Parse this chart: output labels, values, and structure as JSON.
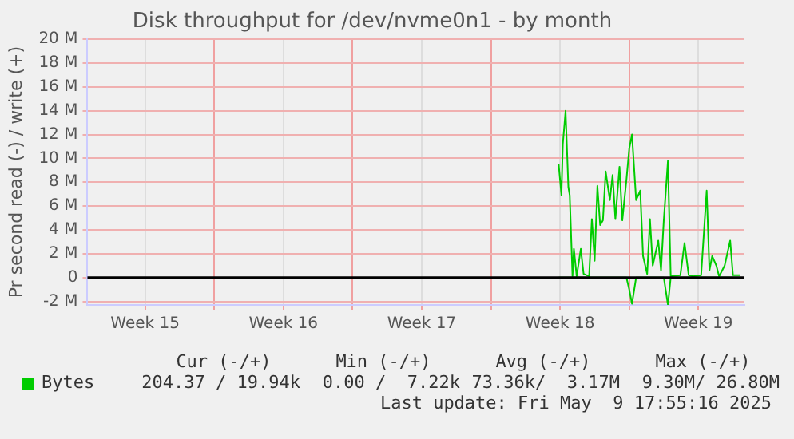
{
  "chart_data": {
    "type": "line",
    "title": "Disk throughput for /dev/nvme0n1 - by month",
    "ylabel": "Pr second read (-) / write (+)",
    "xlim": [
      "2025-04-07T14:00",
      "2025-05-10T20:00"
    ],
    "xticks": [
      {
        "value": "2025-04-10T12:00",
        "label": "Week 15"
      },
      {
        "value": "2025-04-14",
        "label": null
      },
      {
        "value": "2025-04-17T12:00",
        "label": "Week 16"
      },
      {
        "value": "2025-04-21",
        "label": null
      },
      {
        "value": "2025-04-24T12:00",
        "label": "Week 17"
      },
      {
        "value": "2025-04-28",
        "label": null
      },
      {
        "value": "2025-05-01T12:00",
        "label": "Week 18"
      },
      {
        "value": "2025-05-05",
        "label": null
      },
      {
        "value": "2025-05-08T12:00",
        "label": "Week 19"
      }
    ],
    "ylim": [
      -2.3,
      20
    ],
    "yticks": [
      {
        "value": -2,
        "label": "-2 M"
      },
      0,
      {
        "value": 2,
        "label": "2 M"
      },
      {
        "value": 4,
        "label": "4 M"
      },
      {
        "value": 6,
        "label": "6 M"
      },
      {
        "value": 8,
        "label": "8 M"
      },
      {
        "value": 10,
        "label": "10 M"
      },
      {
        "value": 12,
        "label": "12 M"
      },
      {
        "value": 14,
        "label": "14 M"
      },
      {
        "value": 16,
        "label": "16 M"
      },
      {
        "value": 18,
        "label": "18 M"
      },
      {
        "value": 20,
        "label": "20 M"
      }
    ],
    "grid": true,
    "legend": "bottom left",
    "marker": "none",
    "line_style": "solid",
    "series": [
      {
        "name": "Bytes",
        "color": "#00cc00",
        "x": [
          "2025-05-01T10:19",
          "2025-05-01T13:41",
          "2025-05-01T15:22",
          "2025-05-01T18:43",
          "2025-05-01T22:05",
          "2025-05-01T23:46",
          "2025-05-02T03:07",
          "2025-05-02T04:48",
          "2025-05-02T08:10",
          "2025-05-02T13:12",
          "2025-05-02T16:34",
          "2025-05-02T23:17",
          "2025-05-03T02:38",
          "2025-05-03T06:00",
          "2025-05-03T09:22",
          "2025-05-03T12:43",
          "2025-05-03T16:05",
          "2025-05-03T19:26",
          "2025-05-04T00:29",
          "2025-05-04T03:50",
          "2025-05-04T07:12",
          "2025-05-04T12:14",
          "2025-05-04T15:36",
          "2025-05-04T20:38",
          "2025-05-05T00:00",
          "2025-05-05T03:22",
          "2025-05-05T08:24",
          "2025-05-05T13:26",
          "2025-05-05T16:48",
          "2025-05-05T21:50",
          "2025-05-06T01:12",
          "2025-05-06T04:34",
          "2025-05-06T11:17",
          "2025-05-06T14:38",
          "2025-05-06T18:00",
          "2025-05-06T23:02",
          "2025-05-07T02:24",
          "2025-05-07T14:10",
          "2025-05-07T19:12",
          "2025-05-08T00:14",
          "2025-05-08T05:17",
          "2025-05-08T15:22",
          "2025-05-08T22:05",
          "2025-05-09T01:26",
          "2025-05-09T04:48",
          "2025-05-09T09:50",
          "2025-05-09T13:12",
          "2025-05-09T19:55",
          "2025-05-10T02:38",
          "2025-05-10T06:00",
          "2025-05-10T14:24"
        ],
        "values": [
          9.5,
          6.9,
          11.2,
          14.0,
          7.6,
          6.9,
          0.1,
          2.4,
          0.1,
          2.4,
          0.3,
          0.1,
          4.9,
          1.4,
          7.7,
          4.4,
          4.8,
          8.9,
          6.5,
          8.6,
          4.9,
          9.3,
          4.8,
          8.2,
          10.8,
          12.0,
          6.5,
          7.3,
          1.8,
          0.3,
          4.9,
          1.0,
          3.1,
          0.6,
          4.8,
          9.8,
          0.1,
          0.2,
          2.9,
          0.2,
          0.1,
          0.2,
          7.3,
          0.6,
          1.8,
          1.0,
          0.1,
          1.0,
          3.1,
          0.2,
          0.2
        ]
      },
      {
        "color": "#00cc00",
        "x": [
          "2025-05-01T10:19",
          "2025-05-04T20:38",
          "2025-05-05T00:00",
          "2025-05-05T03:22",
          "2025-05-05T08:24",
          "2025-05-06T18:00",
          "2025-05-06T23:02",
          "2025-05-07T02:24",
          "2025-05-10T14:24"
        ],
        "values": [
          0,
          0,
          -1.0,
          -2.2,
          0,
          0,
          -2.3,
          0,
          0
        ]
      }
    ],
    "ref_lines": [
      {
        "axis": "y",
        "value": 0,
        "color": "#000000"
      }
    ],
    "annotations": [
      "Cur (-/+)",
      "Min (-/+)",
      "Avg (-/+)",
      "Max (-/+)",
      "204.37 / 19.94k",
      "0.00 /  7.22k",
      "73.36k/  3.17M",
      "9.30M/ 26.80M",
      "Last update: Fri May  9 17:55:16 2025"
    ]
  }
}
